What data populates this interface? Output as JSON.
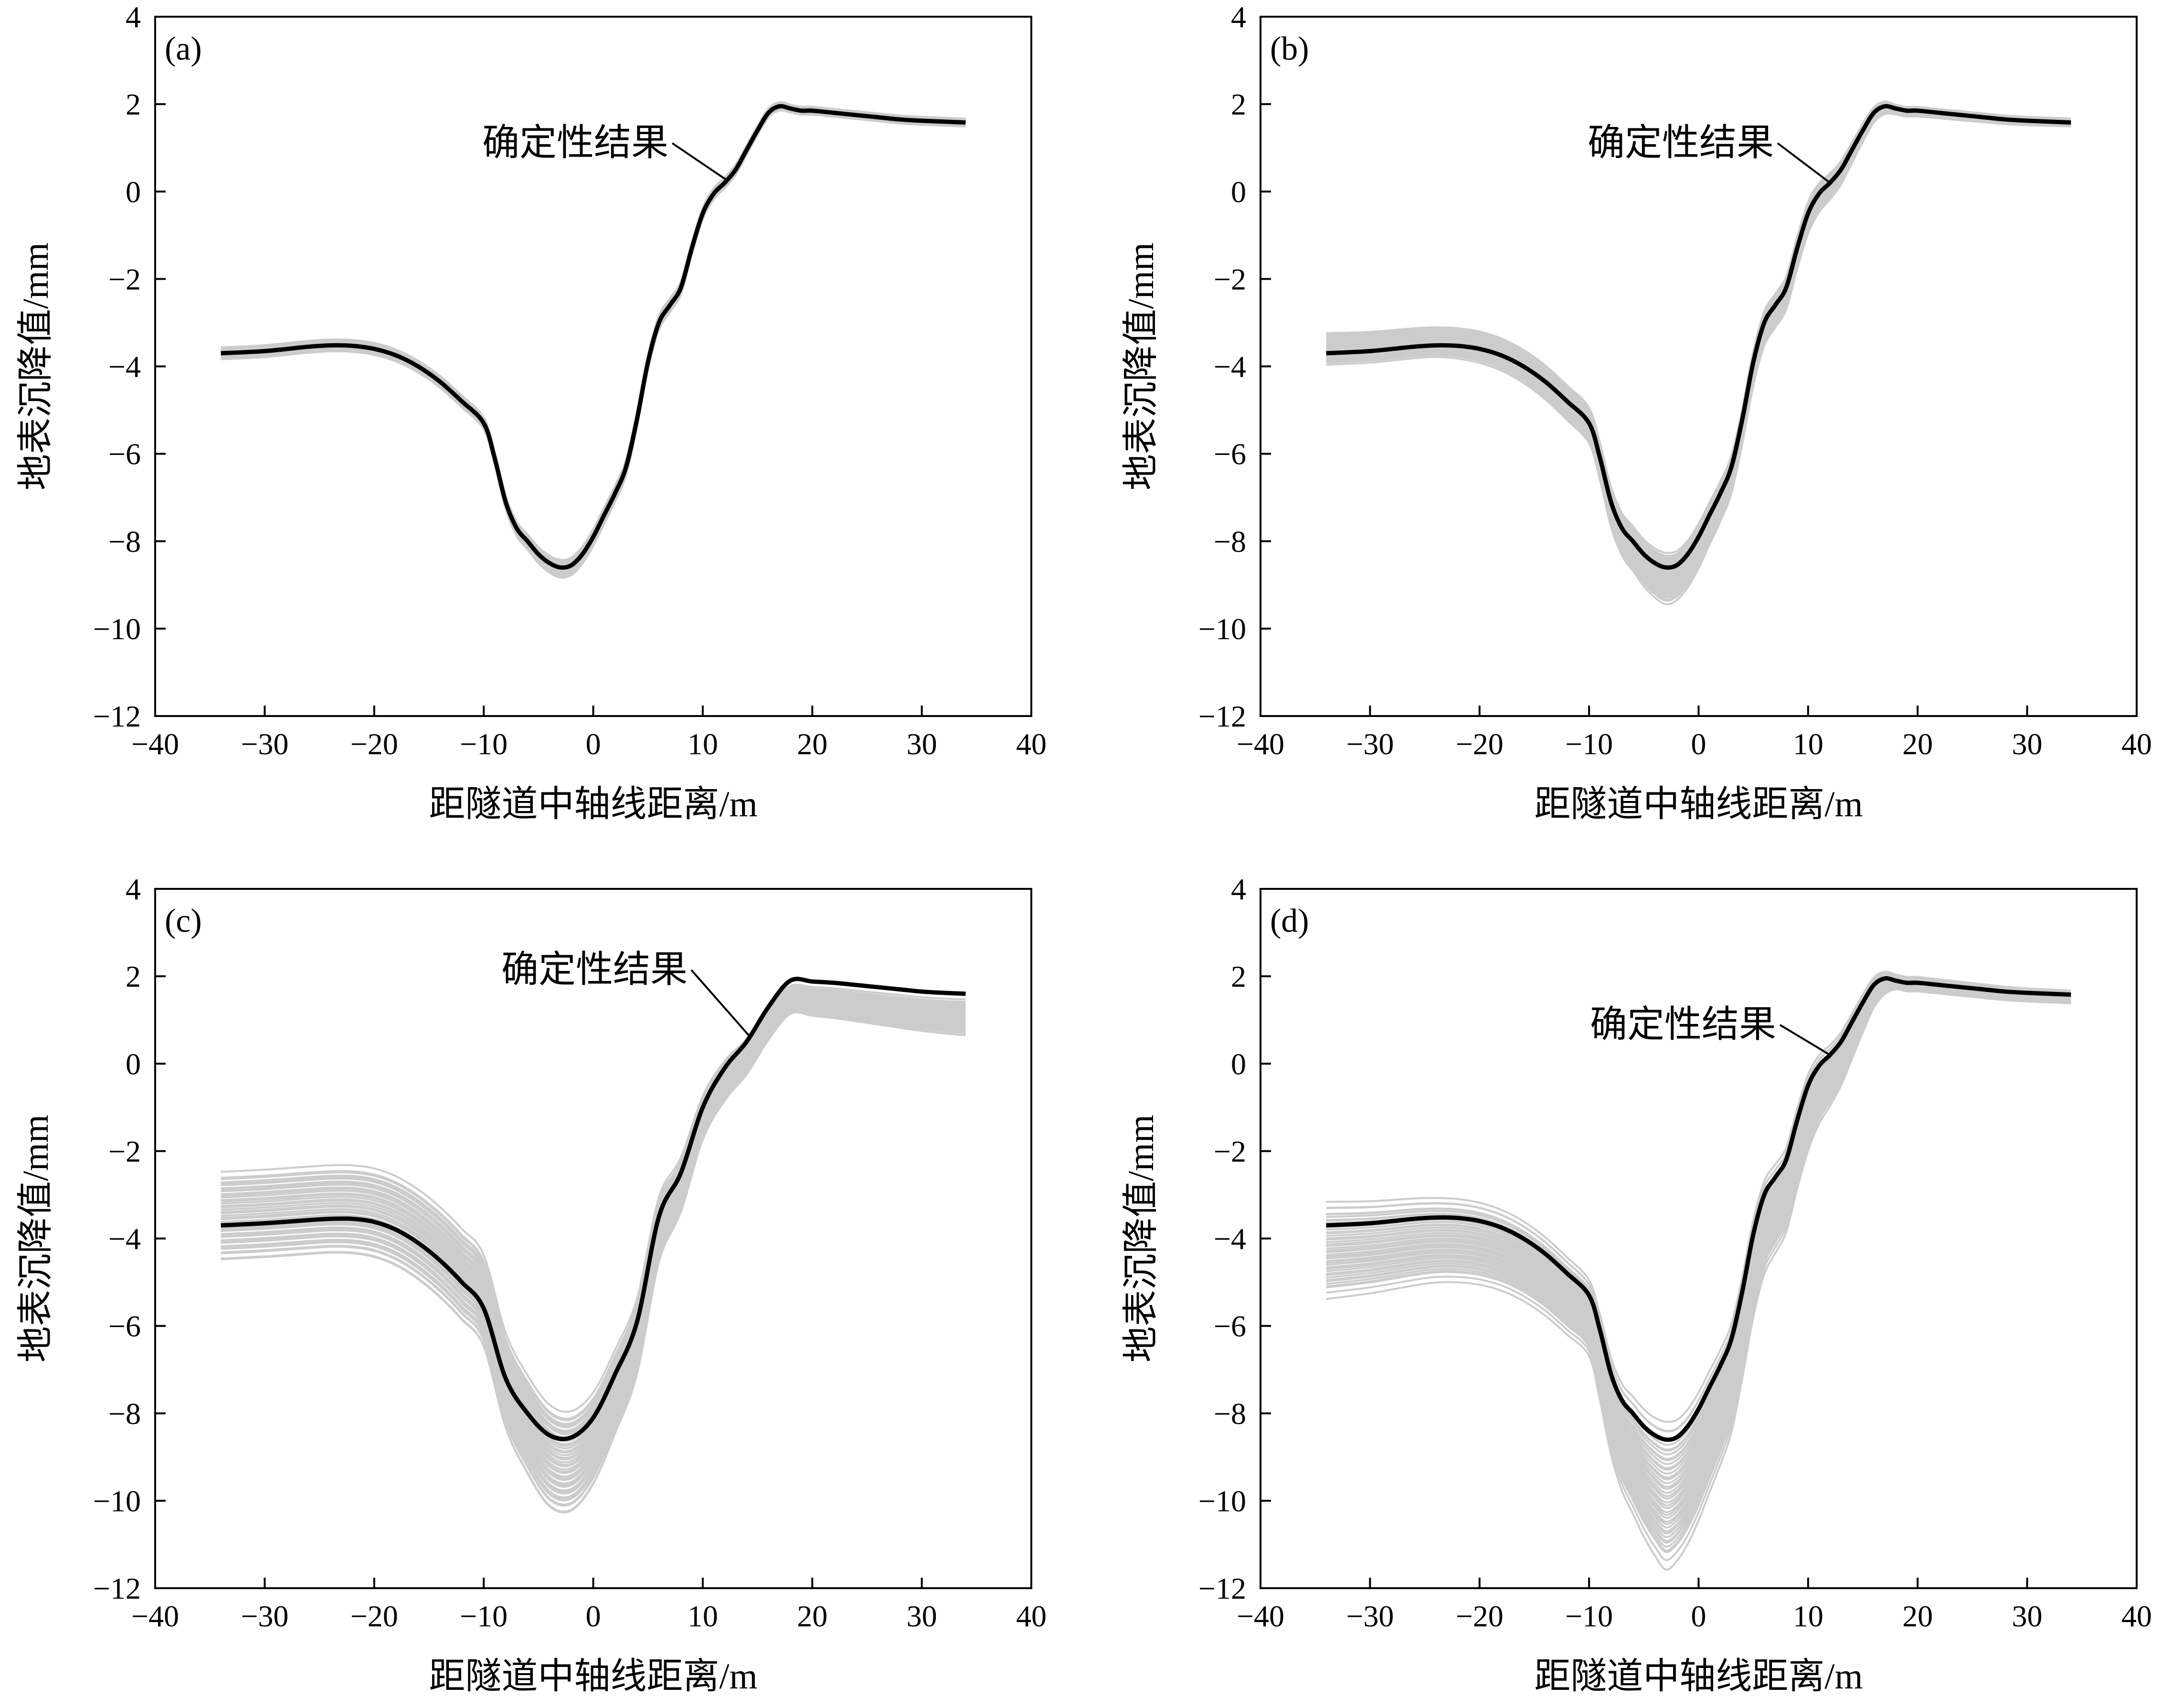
{
  "chart_data": [
    {
      "type": "line",
      "panel_label": "(a)",
      "xlabel": "距隧道中轴线距离/m",
      "ylabel": "地表沉降值/mm",
      "xlim": [
        -40,
        40
      ],
      "ylim": [
        -12,
        4
      ],
      "xticks": [
        -40,
        -30,
        -20,
        -10,
        0,
        10,
        20,
        30,
        40
      ],
      "yticks": [
        -12,
        -10,
        -8,
        -6,
        -4,
        -2,
        0,
        2,
        4
      ],
      "annotation": "确定性结果",
      "series": [
        {
          "role": "deterministic",
          "color": "#000000",
          "x": [
            -34,
            -30,
            -26,
            -24,
            -22,
            -20,
            -18,
            -16,
            -14,
            -12,
            -10,
            -9,
            -8,
            -7,
            -6,
            -5,
            -4,
            -3,
            -2,
            -1,
            0,
            1,
            2,
            3,
            4,
            5,
            6,
            7,
            8,
            9,
            10,
            11,
            12,
            13,
            14,
            15,
            16,
            17,
            18,
            19,
            20,
            22,
            24,
            26,
            28,
            30,
            32,
            34
          ],
          "y": [
            -3.7,
            -3.65,
            -3.55,
            -3.52,
            -3.53,
            -3.6,
            -3.75,
            -4.0,
            -4.35,
            -4.8,
            -5.3,
            -6.1,
            -7.1,
            -7.7,
            -8.0,
            -8.3,
            -8.5,
            -8.6,
            -8.55,
            -8.3,
            -7.9,
            -7.4,
            -6.9,
            -6.3,
            -5.2,
            -3.9,
            -3.0,
            -2.6,
            -2.2,
            -1.3,
            -0.5,
            -0.05,
            0.2,
            0.5,
            0.95,
            1.4,
            1.8,
            1.95,
            1.9,
            1.85,
            1.85,
            1.8,
            1.75,
            1.7,
            1.65,
            1.62,
            1.6,
            1.58
          ]
        }
      ],
      "simulation_band": {
        "color": "#cccccc",
        "x": [
          -34,
          -24,
          -10,
          -3,
          4,
          10,
          18,
          34
        ],
        "upper_offset": [
          0.15,
          0.15,
          0.15,
          0.2,
          0.2,
          0.15,
          0.1,
          0.1
        ],
        "lower_offset": [
          -0.15,
          -0.15,
          -0.15,
          -0.25,
          -0.2,
          -0.15,
          -0.1,
          -0.1
        ]
      }
    },
    {
      "type": "line",
      "panel_label": "(b)",
      "xlabel": "距隧道中轴线距离/m",
      "ylabel": "地表沉降值/mm",
      "xlim": [
        -40,
        40
      ],
      "ylim": [
        -12,
        4
      ],
      "xticks": [
        -40,
        -30,
        -20,
        -10,
        0,
        10,
        20,
        30,
        40
      ],
      "yticks": [
        -12,
        -10,
        -8,
        -6,
        -4,
        -2,
        0,
        2,
        4
      ],
      "annotation": "确定性结果",
      "series": [
        {
          "role": "deterministic",
          "color": "#000000",
          "x": [
            -34,
            -30,
            -26,
            -24,
            -22,
            -20,
            -18,
            -16,
            -14,
            -12,
            -10,
            -9,
            -8,
            -7,
            -6,
            -5,
            -4,
            -3,
            -2,
            -1,
            0,
            1,
            2,
            3,
            4,
            5,
            6,
            7,
            8,
            9,
            10,
            11,
            12,
            13,
            14,
            15,
            16,
            17,
            18,
            19,
            20,
            22,
            24,
            26,
            28,
            30,
            32,
            34
          ],
          "y": [
            -3.7,
            -3.65,
            -3.55,
            -3.52,
            -3.53,
            -3.6,
            -3.75,
            -4.0,
            -4.35,
            -4.8,
            -5.3,
            -6.1,
            -7.1,
            -7.7,
            -8.0,
            -8.3,
            -8.5,
            -8.6,
            -8.55,
            -8.3,
            -7.9,
            -7.4,
            -6.9,
            -6.3,
            -5.2,
            -3.9,
            -3.0,
            -2.6,
            -2.2,
            -1.3,
            -0.5,
            -0.05,
            0.2,
            0.5,
            0.95,
            1.4,
            1.8,
            1.95,
            1.9,
            1.85,
            1.85,
            1.8,
            1.75,
            1.7,
            1.65,
            1.62,
            1.6,
            1.58
          ]
        }
      ],
      "simulation_band": {
        "color": "#cccccc",
        "x": [
          -34,
          -24,
          -10,
          -3,
          4,
          10,
          18,
          34
        ],
        "upper_offset": [
          0.5,
          0.45,
          0.4,
          0.4,
          0.3,
          0.3,
          0.1,
          0.1
        ],
        "lower_offset": [
          -0.3,
          -0.3,
          -0.5,
          -0.9,
          -0.6,
          -0.5,
          -0.15,
          -0.1
        ]
      }
    },
    {
      "type": "line",
      "panel_label": "(c)",
      "xlabel": "距隧道中轴线距离/m",
      "ylabel": "地表沉降值/mm",
      "xlim": [
        -40,
        40
      ],
      "ylim": [
        -12,
        4
      ],
      "xticks": [
        -40,
        -30,
        -20,
        -10,
        0,
        10,
        20,
        30,
        40
      ],
      "yticks": [
        -12,
        -10,
        -8,
        -6,
        -4,
        -2,
        0,
        2,
        4
      ],
      "annotation": "确定性结果",
      "series": [
        {
          "role": "deterministic",
          "color": "#000000",
          "x": [
            -34,
            -30,
            -26,
            -24,
            -22,
            -20,
            -18,
            -16,
            -14,
            -12,
            -10,
            -8,
            -6,
            -4,
            -2,
            0,
            2,
            4,
            6,
            8,
            10,
            12,
            14,
            16,
            18,
            20,
            22,
            24,
            26,
            28,
            30,
            32,
            34
          ],
          "y": [
            -3.7,
            -3.65,
            -3.58,
            -3.55,
            -3.55,
            -3.62,
            -3.8,
            -4.1,
            -4.5,
            -5.0,
            -5.6,
            -7.2,
            -8.0,
            -8.5,
            -8.55,
            -8.1,
            -7.1,
            -5.9,
            -3.5,
            -2.5,
            -1.0,
            -0.1,
            0.5,
            1.3,
            1.9,
            1.88,
            1.85,
            1.8,
            1.75,
            1.7,
            1.65,
            1.62,
            1.6
          ]
        }
      ],
      "simulation_band": {
        "color": "#cccccc",
        "x": [
          -34,
          -24,
          -10,
          -3,
          4,
          10,
          18,
          34
        ],
        "upper_offset": [
          1.3,
          1.3,
          1.3,
          0.7,
          0.6,
          0.3,
          -0.1,
          -0.1
        ],
        "lower_offset": [
          -0.9,
          -0.9,
          -1.0,
          -1.9,
          -1.3,
          -0.8,
          -0.8,
          -1.0
        ]
      }
    },
    {
      "type": "line",
      "panel_label": "(d)",
      "xlabel": "距隧道中轴线距离/m",
      "ylabel": "地表沉降值/mm",
      "xlim": [
        -40,
        40
      ],
      "ylim": [
        -12,
        4
      ],
      "xticks": [
        -40,
        -30,
        -20,
        -10,
        0,
        10,
        20,
        30,
        40
      ],
      "yticks": [
        -12,
        -10,
        -8,
        -6,
        -4,
        -2,
        0,
        2,
        4
      ],
      "annotation": "确定性结果",
      "series": [
        {
          "role": "deterministic",
          "color": "#000000",
          "x": [
            -34,
            -30,
            -26,
            -24,
            -22,
            -20,
            -18,
            -16,
            -14,
            -12,
            -10,
            -9,
            -8,
            -7,
            -6,
            -5,
            -4,
            -3,
            -2,
            -1,
            0,
            1,
            2,
            3,
            4,
            5,
            6,
            7,
            8,
            9,
            10,
            11,
            12,
            13,
            14,
            15,
            16,
            17,
            18,
            19,
            20,
            22,
            24,
            26,
            28,
            30,
            32,
            34
          ],
          "y": [
            -3.7,
            -3.65,
            -3.55,
            -3.52,
            -3.53,
            -3.6,
            -3.75,
            -4.0,
            -4.35,
            -4.8,
            -5.3,
            -6.1,
            -7.1,
            -7.7,
            -8.0,
            -8.3,
            -8.5,
            -8.6,
            -8.55,
            -8.3,
            -7.9,
            -7.4,
            -6.9,
            -6.3,
            -5.2,
            -3.9,
            -3.0,
            -2.6,
            -2.2,
            -1.3,
            -0.5,
            -0.05,
            0.2,
            0.5,
            0.95,
            1.4,
            1.8,
            1.95,
            1.9,
            1.85,
            1.85,
            1.8,
            1.75,
            1.7,
            1.65,
            1.62,
            1.6,
            1.58
          ]
        }
      ],
      "simulation_band": {
        "color": "#cccccc",
        "x": [
          -34,
          -24,
          -10,
          -3,
          4,
          10,
          18,
          34
        ],
        "upper_offset": [
          0.6,
          0.5,
          0.4,
          0.5,
          0.4,
          0.3,
          0.15,
          0.1
        ],
        "lower_offset": [
          -1.7,
          -1.5,
          -1.4,
          -3.0,
          -2.0,
          -1.5,
          -0.2,
          -0.2
        ]
      }
    }
  ]
}
